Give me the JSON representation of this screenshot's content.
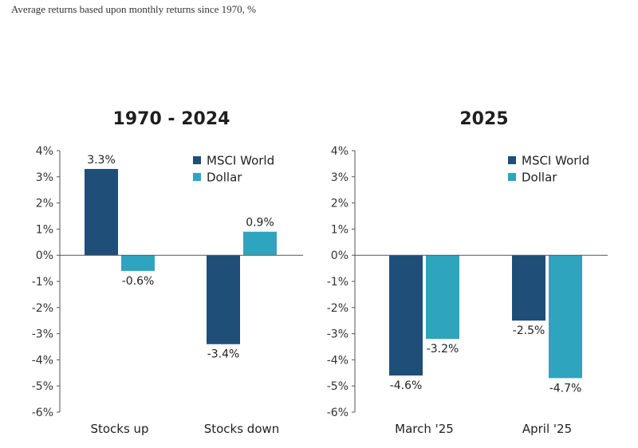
{
  "subtitle": "Average returns based upon monthly returns since 1970, %",
  "colors": {
    "msci_world": "#1f4e79",
    "dollar": "#2fa4bf"
  },
  "chart_data": [
    {
      "type": "bar",
      "title": "1970 - 2024",
      "categories": [
        "Stocks up",
        "Stocks down"
      ],
      "series": [
        {
          "name": "MSCI World",
          "values": [
            3.3,
            -3.4
          ],
          "labels": [
            "3.3%",
            "-3.4%"
          ]
        },
        {
          "name": "Dollar",
          "values": [
            -0.6,
            0.9
          ],
          "labels": [
            "-0.6%",
            "0.9%"
          ]
        }
      ],
      "ylim": [
        -6,
        4
      ],
      "yticks": [
        4,
        3,
        2,
        1,
        0,
        -1,
        -2,
        -3,
        -4,
        -5,
        -6
      ],
      "ytick_labels": [
        "4%",
        "3%",
        "2%",
        "1%",
        "0%",
        "-1%",
        "-2%",
        "-3%",
        "-4%",
        "-5%",
        "-6%"
      ],
      "legend": [
        "MSCI World",
        "Dollar"
      ],
      "legend_position": "top-right",
      "grid": false
    },
    {
      "type": "bar",
      "title": "2025",
      "categories": [
        "March '25",
        "April '25"
      ],
      "series": [
        {
          "name": "MSCI World",
          "values": [
            -4.6,
            -2.5
          ],
          "labels": [
            "-4.6%",
            "-2.5%"
          ]
        },
        {
          "name": "Dollar",
          "values": [
            -3.2,
            -4.7
          ],
          "labels": [
            "-3.2%",
            "-4.7%"
          ]
        }
      ],
      "ylim": [
        -6,
        4
      ],
      "yticks": [
        4,
        3,
        2,
        1,
        0,
        -1,
        -2,
        -3,
        -4,
        -5,
        -6
      ],
      "ytick_labels": [
        "4%",
        "3%",
        "2%",
        "1%",
        "0%",
        "-1%",
        "-2%",
        "-3%",
        "-4%",
        "-5%",
        "-6%"
      ],
      "legend": [
        "MSCI World",
        "Dollar"
      ],
      "legend_position": "top-right",
      "grid": false
    }
  ]
}
